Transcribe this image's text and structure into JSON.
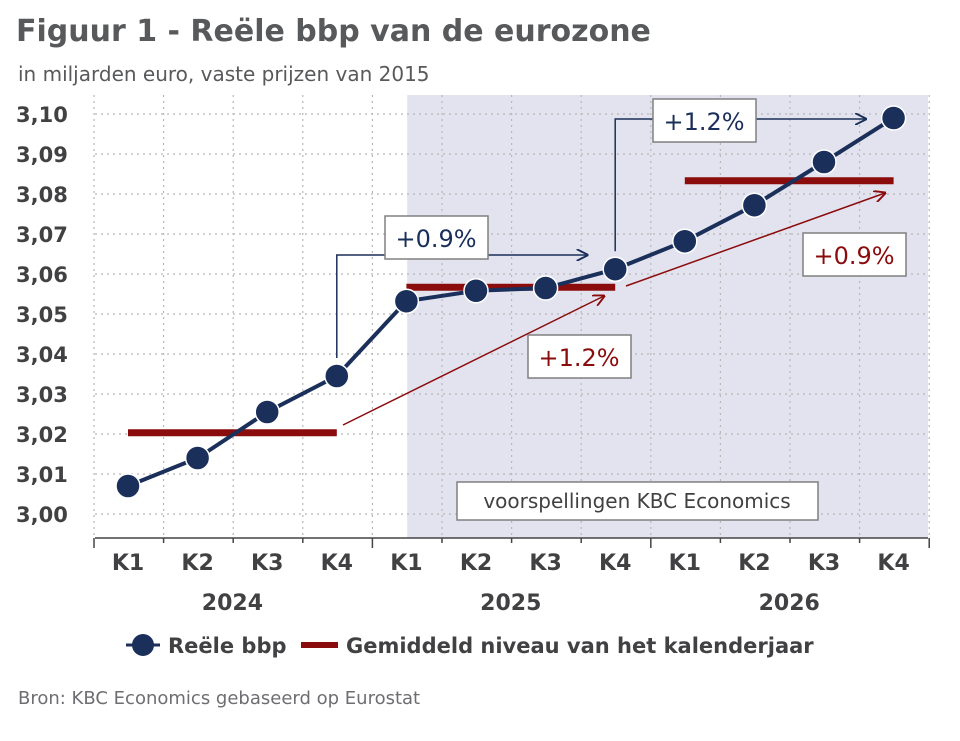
{
  "header": {
    "title": "Figuur 1 - Reële bbp van de eurozone",
    "subtitle": "in miljarden euro, vaste prijzen van 2015"
  },
  "footer": {
    "source": "Bron: KBC Economics gebaseerd op Eurostat"
  },
  "colors": {
    "series_line": "#1a2f5a",
    "average_line": "#8b0c0c",
    "forecast_shade": "#e3e3ef",
    "grid": "#b8b8b8"
  },
  "chart_data": {
    "type": "line",
    "categories": [
      "K1",
      "K2",
      "K3",
      "K4",
      "K1",
      "K2",
      "K3",
      "K4",
      "K1",
      "K2",
      "K3",
      "K4"
    ],
    "years": [
      "2024",
      "2025",
      "2026"
    ],
    "ylim": [
      3.0,
      3.1
    ],
    "yticks": [
      "3,00",
      "3,01",
      "3,02",
      "3,03",
      "3,04",
      "3,05",
      "3,06",
      "3,07",
      "3,08",
      "3,09",
      "3,10"
    ],
    "series": [
      {
        "name": "Reële bbp",
        "values": [
          3.007,
          3.014,
          3.0255,
          3.0345,
          3.0532,
          3.0558,
          3.0565,
          3.0612,
          3.0682,
          3.0772,
          3.088,
          3.099
        ]
      },
      {
        "name": "Gemiddeld niveau van het kalenderjaar",
        "values": [
          3.0203,
          3.0203,
          3.0203,
          3.0203,
          3.0567,
          3.0567,
          3.0567,
          3.0567,
          3.0833,
          3.0833,
          3.0833,
          3.0833
        ]
      }
    ],
    "forecast_label": "voorspellingen KBC Economics",
    "forecast_start_index": 4.5,
    "annotations": [
      {
        "text": "+0.9%",
        "type": "end-of-year",
        "from": 3,
        "to": 7
      },
      {
        "text": "+1.2%",
        "type": "end-of-year",
        "from": 7,
        "to": 11
      },
      {
        "text": "+1.2%",
        "type": "annual-average",
        "from": 0,
        "to": 1
      },
      {
        "text": "+0.9%",
        "type": "annual-average",
        "from": 1,
        "to": 2
      }
    ],
    "grid": true,
    "legend_position": "bottom"
  }
}
